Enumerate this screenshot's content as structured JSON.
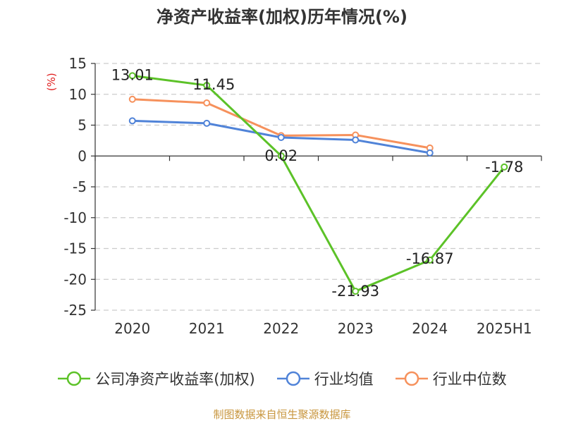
{
  "chart_data": {
    "type": "line",
    "title": "净资产收益率(加权)历年情况(%)",
    "ylabel": "(%)",
    "xlabel": "",
    "categories": [
      "2020",
      "2021",
      "2022",
      "2023",
      "2024",
      "2025H1"
    ],
    "ylim": [
      -25,
      15
    ],
    "yticks": [
      15,
      10,
      5,
      0,
      -5,
      -10,
      -15,
      -20,
      -25
    ],
    "grid": true,
    "legend_position": "bottom",
    "series": [
      {
        "name": "公司净资产收益率(加权)",
        "color": "#5cc228",
        "values": [
          13.01,
          11.45,
          0.02,
          -21.93,
          -16.87,
          -1.78
        ],
        "show_labels": true
      },
      {
        "name": "行业均值",
        "color": "#5083d8",
        "values": [
          5.7,
          5.3,
          3.0,
          2.6,
          0.5,
          null
        ],
        "show_labels": false
      },
      {
        "name": "行业中位数",
        "color": "#f6915c",
        "values": [
          9.2,
          8.6,
          3.3,
          3.4,
          1.3,
          null
        ],
        "show_labels": false
      }
    ],
    "data_labels": [
      "13.01",
      "11.45",
      "0.02",
      "-21.93",
      "-16.87",
      "-1.78"
    ]
  },
  "source_note": "制图数据来自恒生聚源数据库",
  "colors": {
    "axis": "#333333",
    "grid": "#cccccc",
    "ylabel": "#e02020",
    "source": "#c8963e"
  }
}
